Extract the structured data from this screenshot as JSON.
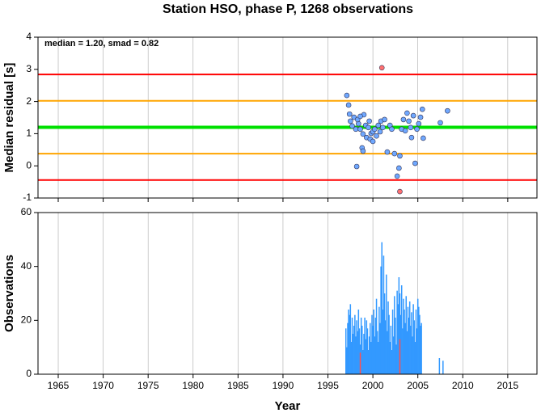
{
  "chart_data": [
    {
      "type": "scatter",
      "title": "Station HSO, phase P, 1268 observations",
      "annotation": "median = 1.20, smad = 0.82",
      "ylabel": "Median residual [s]",
      "xlim": [
        1962.75,
        2018.25
      ],
      "xticks": [
        1965,
        1970,
        1975,
        1980,
        1985,
        1990,
        1995,
        2000,
        2005,
        2010,
        2015
      ],
      "ylim": [
        -1,
        4
      ],
      "yticks": [
        -1,
        0,
        1,
        2,
        3,
        4
      ],
      "grid": true,
      "reference_lines": [
        {
          "value": 2.84,
          "color": "#ff0000"
        },
        {
          "value": 2.02,
          "color": "#ffa500"
        },
        {
          "value": 1.2,
          "color": "#00e000"
        },
        {
          "value": 0.38,
          "color": "#ffa500"
        },
        {
          "value": -0.44,
          "color": "#ff0000"
        }
      ],
      "series": [
        {
          "color": "#6fa8ff",
          "x": [
            1997.1,
            1997.3,
            1997.4,
            1997.5,
            1997.7,
            1997.9,
            1998.1,
            1998.2,
            1998.4,
            1998.6,
            1998.8,
            1998.9,
            1999.0,
            1999.2,
            1999.3,
            1999.5,
            1999.7,
            1999.8,
            2000.0,
            2000.0,
            2000.2,
            2000.4,
            2000.6,
            2000.8,
            2000.9,
            2001.1,
            2001.3,
            2001.6,
            2001.9,
            2002.1,
            2002.4,
            2002.7,
            2002.9,
            2003.0,
            2003.2,
            2003.4,
            2003.6,
            2003.8,
            2004.0,
            2004.2,
            2004.3,
            2004.5,
            2004.7,
            2004.9,
            2005.1,
            2005.3,
            2005.5,
            2005.6,
            2007.5,
            2008.3,
            1998.3,
            1998.6,
            1998.9,
            1999.6
          ],
          "values": [
            2.19,
            1.89,
            1.61,
            1.39,
            1.24,
            1.51,
            1.14,
            -0.02,
            1.31,
            1.14,
            0.56,
            0.46,
            1.59,
            1.26,
            0.88,
            1.19,
            0.83,
            1.01,
            1.06,
            0.76,
            1.14,
            0.93,
            1.26,
            1.06,
            1.39,
            1.19,
            1.44,
            0.43,
            1.26,
            1.14,
            0.38,
            -0.32,
            -0.07,
            0.31,
            1.14,
            1.44,
            1.09,
            1.64,
            1.39,
            1.19,
            0.88,
            1.56,
            0.08,
            1.14,
            1.31,
            1.51,
            1.76,
            0.86,
            1.34,
            1.71,
            1.44,
            1.54,
            0.99,
            1.39
          ]
        },
        {
          "color": "#ff7070",
          "x": [
            2001.0,
            2003.0
          ],
          "values": [
            3.05,
            -0.8
          ]
        }
      ]
    },
    {
      "type": "bar",
      "ylabel": "Observations",
      "xlabel": "Year",
      "xlim": [
        1962.75,
        2018.25
      ],
      "xticks": [
        1965,
        1970,
        1975,
        1980,
        1985,
        1990,
        1995,
        2000,
        2005,
        2010,
        2015
      ],
      "ylim": [
        0,
        60
      ],
      "yticks": [
        0,
        20,
        40,
        60
      ],
      "grid": true,
      "series": [
        {
          "color": "#3399ff",
          "x": [
            1997.0,
            1997.1,
            1997.2,
            1997.3,
            1997.4,
            1997.5,
            1997.6,
            1997.7,
            1997.8,
            1997.9,
            1998.0,
            1998.1,
            1998.2,
            1998.3,
            1998.4,
            1998.5,
            1998.6,
            1998.7,
            1998.8,
            1998.9,
            1999.0,
            1999.1,
            1999.2,
            1999.3,
            1999.4,
            1999.5,
            1999.6,
            1999.7,
            1999.8,
            1999.9,
            2000.0,
            2000.1,
            2000.2,
            2000.3,
            2000.4,
            2000.5,
            2000.6,
            2000.7,
            2000.8,
            2000.9,
            2001.0,
            2001.1,
            2001.2,
            2001.3,
            2001.4,
            2001.5,
            2001.6,
            2001.7,
            2001.8,
            2001.9,
            2002.0,
            2002.1,
            2002.2,
            2002.3,
            2002.4,
            2002.5,
            2002.6,
            2002.7,
            2002.8,
            2002.9,
            2003.0,
            2003.1,
            2003.2,
            2003.3,
            2003.4,
            2003.5,
            2003.6,
            2003.7,
            2003.8,
            2003.9,
            2004.0,
            2004.1,
            2004.2,
            2004.3,
            2004.4,
            2004.5,
            2004.6,
            2004.7,
            2004.8,
            2004.9,
            2005.0,
            2005.1,
            2005.2,
            2005.3,
            2005.4,
            2007.4,
            2007.8
          ],
          "values": [
            17,
            10,
            19,
            24,
            22,
            26,
            12,
            21,
            15,
            18,
            22,
            14,
            20,
            16,
            24,
            17,
            11,
            21,
            18,
            9,
            15,
            21,
            13,
            20,
            17,
            9,
            14,
            19,
            12,
            22,
            18,
            24,
            14,
            21,
            28,
            16,
            12,
            25,
            19,
            40,
            49,
            24,
            44,
            30,
            20,
            37,
            16,
            27,
            22,
            12,
            18,
            9,
            24,
            14,
            29,
            21,
            11,
            31,
            26,
            36,
            30,
            22,
            33,
            17,
            28,
            24,
            19,
            29,
            16,
            25,
            21,
            27,
            18,
            23,
            14,
            26,
            20,
            12,
            24,
            17,
            28,
            25,
            22,
            18,
            19,
            6,
            5
          ]
        },
        {
          "color": "#ff5050",
          "x": [
            1998.6,
            2003.0
          ],
          "values": [
            8,
            13
          ]
        }
      ]
    }
  ]
}
